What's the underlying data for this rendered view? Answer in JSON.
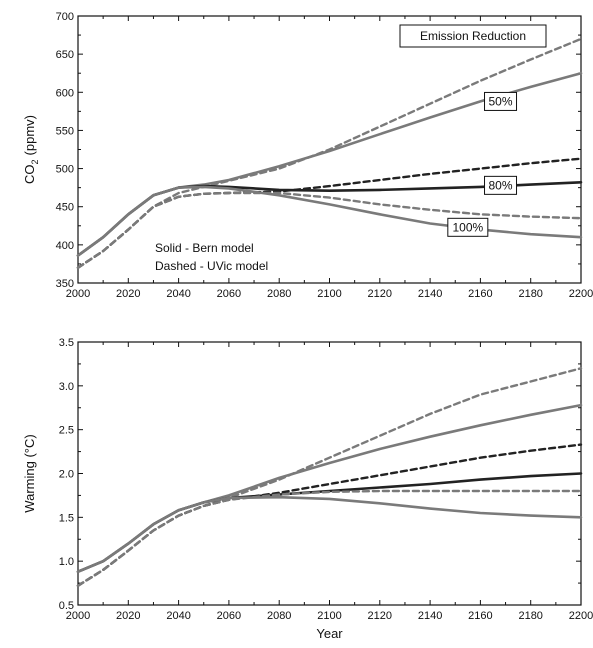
{
  "chart_data": [
    {
      "type": "line",
      "xlabel": "",
      "ylabel_main": "CO",
      "ylabel_sub": "2",
      "ylabel_unit": "(ppmv)",
      "xlim": [
        2000,
        2200
      ],
      "ylim": [
        350,
        700
      ],
      "xticks": [
        2000,
        2020,
        2040,
        2060,
        2080,
        2100,
        2120,
        2140,
        2160,
        2180,
        2200
      ],
      "yticks": [
        350,
        400,
        450,
        500,
        550,
        600,
        650,
        700
      ],
      "legend_box": "Emission Reduction",
      "annotations": [
        "Solid - Bern model",
        "Dashed - UVic model"
      ],
      "series": [
        {
          "style": "solid",
          "color": "#7a7a7a",
          "label": "50%",
          "x": [
            2000,
            2010,
            2020,
            2030,
            2040,
            2050,
            2060,
            2080,
            2100,
            2120,
            2140,
            2160,
            2180,
            2200
          ],
          "y": [
            386,
            410,
            440,
            465,
            475,
            479,
            485,
            503,
            523,
            545,
            567,
            588,
            607,
            625
          ]
        },
        {
          "style": "dashed",
          "color": "#7a7a7a",
          "x": [
            2000,
            2010,
            2020,
            2030,
            2040,
            2050,
            2060,
            2080,
            2100,
            2120,
            2140,
            2160,
            2180,
            2200
          ],
          "y": [
            370,
            392,
            420,
            450,
            468,
            476,
            484,
            500,
            525,
            555,
            585,
            615,
            643,
            670
          ]
        },
        {
          "style": "solid",
          "color": "#222222",
          "label": "80%",
          "x": [
            2000,
            2010,
            2020,
            2030,
            2040,
            2050,
            2060,
            2080,
            2100,
            2120,
            2140,
            2160,
            2180,
            2200
          ],
          "y": [
            386,
            410,
            440,
            465,
            475,
            477,
            476,
            472,
            471,
            472,
            474,
            476,
            479,
            482
          ]
        },
        {
          "style": "dashed",
          "color": "#222222",
          "x": [
            2000,
            2010,
            2020,
            2030,
            2040,
            2050,
            2060,
            2080,
            2100,
            2120,
            2140,
            2160,
            2180,
            2200
          ],
          "y": [
            370,
            392,
            420,
            450,
            463,
            467,
            468,
            470,
            477,
            485,
            493,
            500,
            507,
            513
          ]
        },
        {
          "style": "solid",
          "color": "#7a7a7a",
          "label": "100%",
          "x": [
            2000,
            2010,
            2020,
            2030,
            2040,
            2050,
            2060,
            2080,
            2100,
            2120,
            2140,
            2160,
            2180,
            2200
          ],
          "y": [
            386,
            410,
            440,
            465,
            475,
            476,
            474,
            465,
            453,
            440,
            428,
            420,
            414,
            410
          ]
        },
        {
          "style": "dashed",
          "color": "#7a7a7a",
          "x": [
            2000,
            2010,
            2020,
            2030,
            2040,
            2050,
            2060,
            2080,
            2100,
            2120,
            2140,
            2160,
            2180,
            2200
          ],
          "y": [
            370,
            392,
            420,
            450,
            463,
            467,
            468,
            468,
            462,
            453,
            446,
            440,
            437,
            435
          ]
        }
      ],
      "labels": [
        {
          "text": "50%",
          "x": 2168,
          "y": 588
        },
        {
          "text": "80%",
          "x": 2168,
          "y": 478
        },
        {
          "text": "100%",
          "x": 2155,
          "y": 423
        }
      ]
    },
    {
      "type": "line",
      "xlabel": "Year",
      "ylabel": "Warming (°C)",
      "xlim": [
        2000,
        2200
      ],
      "ylim": [
        0.5,
        3.5
      ],
      "xticks": [
        2000,
        2020,
        2040,
        2060,
        2080,
        2100,
        2120,
        2140,
        2160,
        2180,
        2200
      ],
      "yticks": [
        0.5,
        1.0,
        1.5,
        2.0,
        2.5,
        3.0,
        3.5
      ],
      "ytick_labels": [
        "0.5",
        "1.0",
        "1.5",
        "2.0",
        "2.5",
        "3.0",
        "3.5"
      ],
      "series": [
        {
          "style": "solid",
          "color": "#7a7a7a",
          "x": [
            2000,
            2010,
            2020,
            2030,
            2040,
            2050,
            2060,
            2080,
            2100,
            2120,
            2140,
            2160,
            2180,
            2200
          ],
          "y": [
            0.88,
            1.0,
            1.2,
            1.42,
            1.58,
            1.67,
            1.75,
            1.95,
            2.12,
            2.28,
            2.42,
            2.55,
            2.67,
            2.78
          ]
        },
        {
          "style": "dashed",
          "color": "#7a7a7a",
          "x": [
            2000,
            2010,
            2020,
            2030,
            2040,
            2050,
            2060,
            2080,
            2100,
            2120,
            2140,
            2160,
            2180,
            2200
          ],
          "y": [
            0.72,
            0.9,
            1.12,
            1.35,
            1.52,
            1.63,
            1.72,
            1.93,
            2.18,
            2.43,
            2.68,
            2.9,
            3.05,
            3.2
          ]
        },
        {
          "style": "solid",
          "color": "#222222",
          "x": [
            2000,
            2010,
            2020,
            2030,
            2040,
            2050,
            2060,
            2080,
            2100,
            2120,
            2140,
            2160,
            2180,
            2200
          ],
          "y": [
            0.88,
            1.0,
            1.2,
            1.42,
            1.58,
            1.67,
            1.72,
            1.76,
            1.8,
            1.84,
            1.88,
            1.93,
            1.97,
            2.0
          ]
        },
        {
          "style": "dashed",
          "color": "#222222",
          "x": [
            2000,
            2010,
            2020,
            2030,
            2040,
            2050,
            2060,
            2080,
            2100,
            2120,
            2140,
            2160,
            2180,
            2200
          ],
          "y": [
            0.72,
            0.9,
            1.12,
            1.35,
            1.52,
            1.63,
            1.7,
            1.78,
            1.88,
            1.98,
            2.08,
            2.18,
            2.26,
            2.33
          ]
        },
        {
          "style": "solid",
          "color": "#7a7a7a",
          "x": [
            2000,
            2010,
            2020,
            2030,
            2040,
            2050,
            2060,
            2080,
            2100,
            2120,
            2140,
            2160,
            2180,
            2200
          ],
          "y": [
            0.88,
            1.0,
            1.2,
            1.42,
            1.58,
            1.67,
            1.72,
            1.73,
            1.71,
            1.66,
            1.6,
            1.55,
            1.52,
            1.5
          ]
        },
        {
          "style": "dashed",
          "color": "#7a7a7a",
          "x": [
            2000,
            2010,
            2020,
            2030,
            2040,
            2050,
            2060,
            2080,
            2100,
            2120,
            2140,
            2160,
            2180,
            2200
          ],
          "y": [
            0.72,
            0.9,
            1.12,
            1.35,
            1.52,
            1.63,
            1.7,
            1.76,
            1.79,
            1.8,
            1.8,
            1.8,
            1.8,
            1.8
          ]
        }
      ]
    }
  ]
}
